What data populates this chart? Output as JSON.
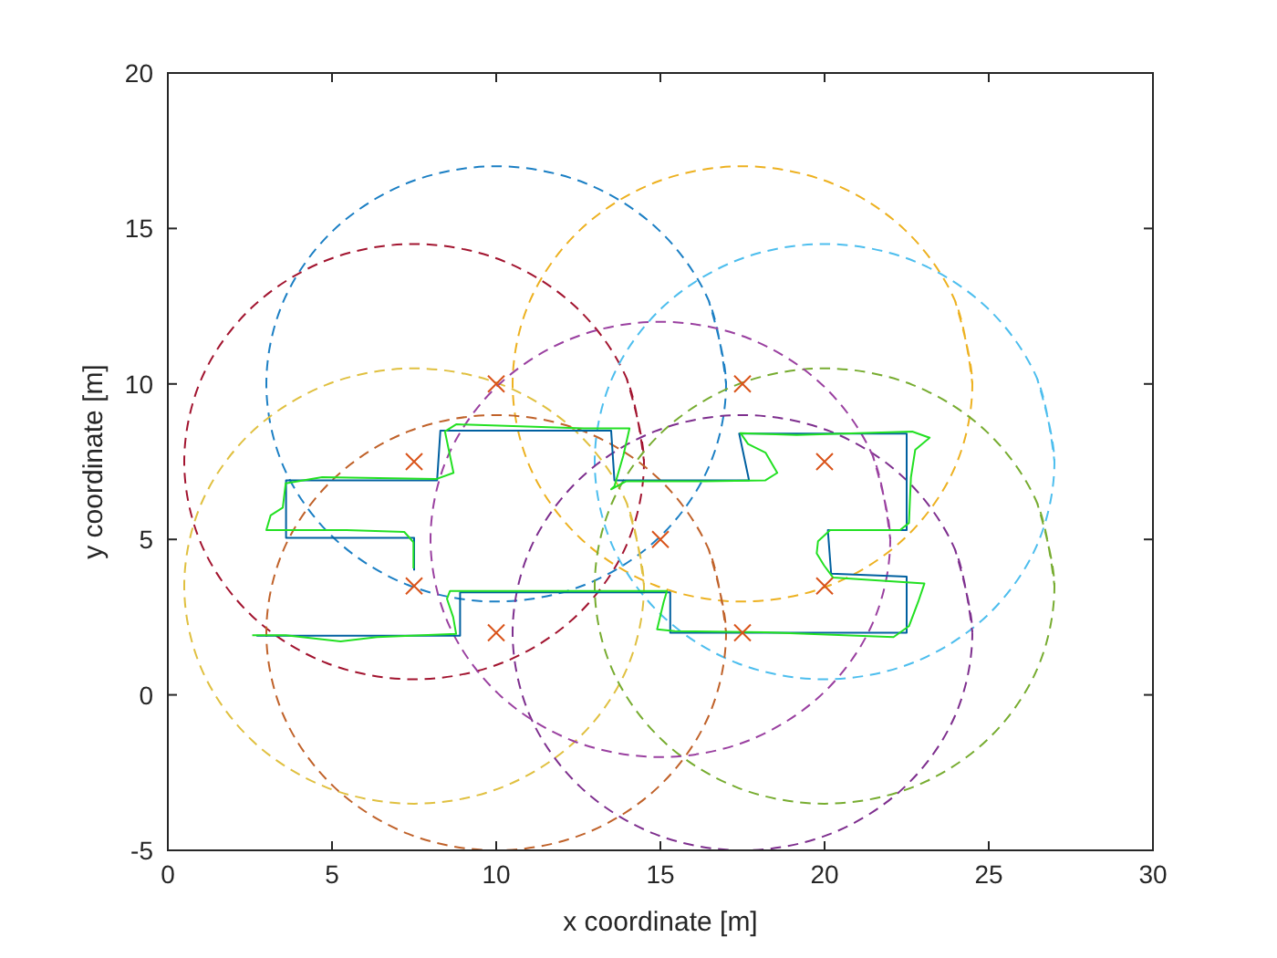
{
  "chart_data": {
    "type": "line",
    "xlabel": "x coordinate [m]",
    "ylabel": "y coordinate [m]",
    "xlim": [
      0,
      30
    ],
    "ylim": [
      -5,
      20
    ],
    "xticks": [
      0,
      5,
      10,
      15,
      20,
      25,
      30
    ],
    "yticks": [
      -5,
      0,
      5,
      10,
      15,
      20
    ],
    "grid": false,
    "series": [
      {
        "line_style": "dashed",
        "color": "#1b7fc4",
        "x": [
          17,
          16.47,
          14.95,
          12.68,
          10,
          7.32,
          5.05,
          3.53,
          3,
          3.53,
          5.05,
          7.32,
          10,
          12.68,
          14.95,
          16.47,
          17,
          16.47
        ],
        "values": [
          10,
          12.68,
          14.95,
          16.47,
          17,
          16.47,
          14.95,
          12.68,
          10,
          7.32,
          5.05,
          3.53,
          3,
          3.53,
          5.05,
          7.32,
          10,
          12.68
        ]
      },
      {
        "line_style": "dashed",
        "color": "#edb120",
        "x": [
          24.5,
          23.97,
          22.45,
          20.18,
          17.5,
          14.82,
          12.55,
          11.03,
          10.5,
          11.03,
          12.55,
          14.82,
          17.5,
          20.18,
          22.45,
          23.97,
          24.5,
          23.97
        ],
        "values": [
          10,
          12.68,
          14.95,
          16.47,
          17,
          16.47,
          14.95,
          12.68,
          10,
          7.32,
          5.05,
          3.53,
          3,
          3.53,
          5.05,
          7.32,
          10,
          12.68
        ]
      },
      {
        "line_style": "dashed",
        "color": "#a2142f",
        "x": [
          14.5,
          13.97,
          12.45,
          10.18,
          7.5,
          4.82,
          2.55,
          1.03,
          0.5,
          1.03,
          2.55,
          4.82,
          7.5,
          10.18,
          12.45,
          13.97,
          14.5,
          13.97
        ],
        "values": [
          7.5,
          10.18,
          12.45,
          13.97,
          14.5,
          13.97,
          12.45,
          10.18,
          7.5,
          4.82,
          2.55,
          1.03,
          0.5,
          1.03,
          2.55,
          4.82,
          7.5,
          10.18
        ]
      },
      {
        "line_style": "dashed",
        "color": "#4dbeee",
        "x": [
          27,
          26.47,
          24.95,
          22.68,
          20,
          17.32,
          15.05,
          13.53,
          13,
          13.53,
          15.05,
          17.32,
          20,
          22.68,
          24.95,
          26.47,
          27,
          26.47
        ],
        "values": [
          7.5,
          10.18,
          12.45,
          13.97,
          14.5,
          13.97,
          12.45,
          10.18,
          7.5,
          4.82,
          2.55,
          1.03,
          0.5,
          1.03,
          2.55,
          4.82,
          7.5,
          10.18
        ]
      },
      {
        "line_style": "dashed",
        "color": "#e0c040",
        "x": [
          14.5,
          13.97,
          12.45,
          10.18,
          7.5,
          4.82,
          2.55,
          1.03,
          0.5,
          1.03,
          2.55,
          4.82,
          7.5,
          10.18,
          12.45,
          13.97,
          14.5,
          13.97
        ],
        "values": [
          3.5,
          6.18,
          8.45,
          9.97,
          10.5,
          9.97,
          8.45,
          6.18,
          3.5,
          0.82,
          -1.45,
          -2.97,
          -3.5,
          -2.97,
          -1.45,
          0.82,
          3.5,
          6.18
        ]
      },
      {
        "line_style": "dashed",
        "color": "#77ac30",
        "x": [
          27,
          26.47,
          24.95,
          22.68,
          20,
          17.32,
          15.05,
          13.53,
          13,
          13.53,
          15.05,
          17.32,
          20,
          22.68,
          24.95,
          26.47,
          27,
          26.47
        ],
        "values": [
          3.5,
          6.18,
          8.45,
          9.97,
          10.5,
          9.97,
          8.45,
          6.18,
          3.5,
          0.82,
          -1.45,
          -2.97,
          -3.5,
          -2.97,
          -1.45,
          0.82,
          3.5,
          6.18
        ]
      },
      {
        "line_style": "dashed",
        "color": "#c0622a",
        "x": [
          17,
          16.47,
          14.95,
          12.68,
          10,
          7.32,
          5.05,
          3.53,
          3,
          3.53,
          5.05,
          7.32,
          10,
          12.68,
          14.95,
          16.47,
          17,
          16.47
        ],
        "values": [
          2,
          4.68,
          6.95,
          8.47,
          9,
          8.47,
          6.95,
          4.68,
          2,
          -0.68,
          -2.95,
          -4.47,
          -5,
          -4.47,
          -2.95,
          -0.68,
          2,
          4.68
        ]
      },
      {
        "line_style": "dashed",
        "color": "#7e2f8e",
        "x": [
          24.5,
          23.97,
          22.45,
          20.18,
          17.5,
          14.82,
          12.55,
          11.03,
          10.5,
          11.03,
          12.55,
          14.82,
          17.5,
          20.18,
          22.45,
          23.97,
          24.5,
          23.97
        ],
        "values": [
          2,
          4.68,
          6.95,
          8.47,
          9,
          8.47,
          6.95,
          4.68,
          2,
          -0.68,
          -2.95,
          -4.47,
          -5,
          -4.47,
          -2.95,
          -0.68,
          2,
          4.68
        ]
      },
      {
        "line_style": "dashed",
        "color": "#9a40a0",
        "x": [
          22,
          21.47,
          19.95,
          17.68,
          15,
          12.32,
          10.05,
          8.53,
          8,
          8.53,
          10.05,
          12.32,
          15,
          17.68,
          19.95,
          21.47,
          22,
          21.47
        ],
        "values": [
          5,
          7.68,
          9.95,
          11.47,
          12,
          11.47,
          9.95,
          7.68,
          5,
          2.32,
          0.05,
          -1.47,
          -2,
          -1.47,
          0.05,
          2.32,
          5,
          7.68
        ]
      },
      {
        "line_style": "solid",
        "color": "#0060a0",
        "x": [
          7.5,
          7.5,
          3.6,
          3.6,
          8.2,
          8.3,
          13.5,
          13.6,
          17.7,
          17.4,
          22.5,
          22.5,
          20.1,
          20.2,
          22.5,
          22.5,
          15.3,
          15.3,
          8.9,
          8.9,
          2.7
        ],
        "values": [
          4.0,
          5.05,
          5.05,
          6.9,
          6.9,
          8.5,
          8.5,
          6.9,
          6.9,
          8.4,
          8.4,
          5.3,
          5.3,
          3.9,
          3.8,
          2.0,
          2.0,
          3.3,
          3.3,
          1.9,
          1.9
        ]
      },
      {
        "line_style": "solid",
        "color": "#22e022",
        "x": [
          7.48,
          7.48,
          7.2,
          5.44,
          3.0,
          3.13,
          3.5,
          3.59,
          4.7,
          8.17,
          8.7,
          8.44,
          8.78,
          12.67,
          14.06,
          13.87,
          13.6,
          13.5,
          13.96,
          16.37,
          18.2,
          18.56,
          18.2,
          17.67,
          17.44,
          19.15,
          22.67,
          23.2,
          22.76,
          22.63,
          22.57,
          22.3,
          20.17,
          19.8,
          19.76,
          19.98,
          20.26,
          23.04,
          22.85,
          22.57,
          22.1,
          18.2,
          15.44,
          14.9,
          15.1,
          15.2,
          8.59,
          8.5,
          8.69,
          8.78,
          6.37,
          5.26,
          3.59,
          2.57
        ],
        "values": [
          4.07,
          4.91,
          5.24,
          5.3,
          5.3,
          5.77,
          6.02,
          6.8,
          7.0,
          6.94,
          7.14,
          8.47,
          8.7,
          8.57,
          8.57,
          7.69,
          6.71,
          6.61,
          6.87,
          6.87,
          6.9,
          7.14,
          7.79,
          8.07,
          8.42,
          8.36,
          8.47,
          8.27,
          7.88,
          7.0,
          5.53,
          5.3,
          5.3,
          4.94,
          4.55,
          4.17,
          3.77,
          3.58,
          2.99,
          2.21,
          1.86,
          2.01,
          2.05,
          2.11,
          2.99,
          3.34,
          3.34,
          3.09,
          2.5,
          1.96,
          1.86,
          1.72,
          1.92,
          1.92
        ]
      },
      {
        "type": "scatter",
        "marker": "cross",
        "color": "#d95319",
        "x": [
          10,
          17.5,
          7.5,
          20,
          7.5,
          20,
          10,
          17.5,
          15
        ],
        "values": [
          10,
          10,
          7.5,
          7.5,
          3.5,
          3.5,
          2,
          2,
          5
        ]
      }
    ]
  }
}
